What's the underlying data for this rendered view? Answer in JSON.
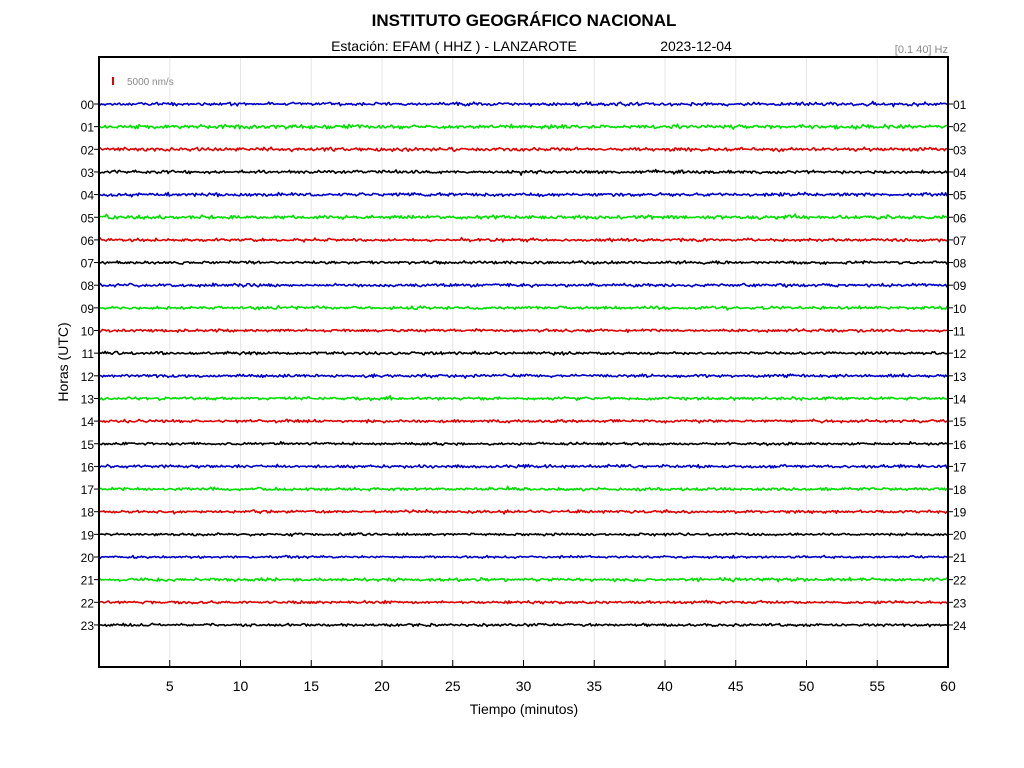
{
  "chart_data": {
    "type": "line",
    "title": "INSTITUTO GEOGRÁFICO NACIONAL",
    "subtitle": {
      "station": "Estación:  EFAM ( HHZ ) - LANZAROTE",
      "date": "2023-12-04"
    },
    "filter": "[0.1 40] Hz",
    "scale_label": "5000 nm/s",
    "xlabel": "Tiempo (minutos)",
    "ylabel": "Horas (UTC)",
    "xlim": [
      0,
      60
    ],
    "x_ticks": [
      "5",
      "10",
      "15",
      "20",
      "25",
      "30",
      "35",
      "40",
      "45",
      "50",
      "55",
      "60"
    ],
    "x_tick_values": [
      5,
      10,
      15,
      20,
      25,
      30,
      35,
      40,
      45,
      50,
      55,
      60
    ],
    "left_labels": [
      "00",
      "01",
      "02",
      "03",
      "04",
      "05",
      "06",
      "07",
      "08",
      "09",
      "10",
      "11",
      "12",
      "13",
      "14",
      "15",
      "16",
      "17",
      "18",
      "19",
      "20",
      "21",
      "22",
      "23"
    ],
    "right_labels": [
      "01",
      "02",
      "03",
      "04",
      "05",
      "06",
      "07",
      "08",
      "09",
      "10",
      "11",
      "12",
      "13",
      "14",
      "15",
      "16",
      "17",
      "18",
      "19",
      "20",
      "21",
      "22",
      "23",
      "24"
    ],
    "trace_colors": [
      "#0000c8",
      "#00e000",
      "#e00000",
      "#000000"
    ],
    "scale_color": "#e00000",
    "grid": "vertical",
    "series": [
      {
        "hour": 0,
        "color": "#0000c8",
        "amplitude_nm_s": 1500
      },
      {
        "hour": 1,
        "color": "#00e000",
        "amplitude_nm_s": 1700
      },
      {
        "hour": 2,
        "color": "#e00000",
        "amplitude_nm_s": 1500
      },
      {
        "hour": 3,
        "color": "#000000",
        "amplitude_nm_s": 1400
      },
      {
        "hour": 4,
        "color": "#0000c8",
        "amplitude_nm_s": 1500
      },
      {
        "hour": 5,
        "color": "#00e000",
        "amplitude_nm_s": 1600
      },
      {
        "hour": 6,
        "color": "#e00000",
        "amplitude_nm_s": 1300
      },
      {
        "hour": 7,
        "color": "#000000",
        "amplitude_nm_s": 1200
      },
      {
        "hour": 8,
        "color": "#0000c8",
        "amplitude_nm_s": 1400
      },
      {
        "hour": 9,
        "color": "#00e000",
        "amplitude_nm_s": 1300
      },
      {
        "hour": 10,
        "color": "#e00000",
        "amplitude_nm_s": 1200
      },
      {
        "hour": 11,
        "color": "#000000",
        "amplitude_nm_s": 1200
      },
      {
        "hour": 12,
        "color": "#0000c8",
        "amplitude_nm_s": 1300
      },
      {
        "hour": 13,
        "color": "#00e000",
        "amplitude_nm_s": 1300
      },
      {
        "hour": 14,
        "color": "#e00000",
        "amplitude_nm_s": 1300
      },
      {
        "hour": 15,
        "color": "#000000",
        "amplitude_nm_s": 1100
      },
      {
        "hour": 16,
        "color": "#0000c8",
        "amplitude_nm_s": 1300
      },
      {
        "hour": 17,
        "color": "#00e000",
        "amplitude_nm_s": 1300
      },
      {
        "hour": 18,
        "color": "#e00000",
        "amplitude_nm_s": 1200
      },
      {
        "hour": 19,
        "color": "#000000",
        "amplitude_nm_s": 1100
      },
      {
        "hour": 20,
        "color": "#0000c8",
        "amplitude_nm_s": 1000
      },
      {
        "hour": 21,
        "color": "#00e000",
        "amplitude_nm_s": 1400
      },
      {
        "hour": 22,
        "color": "#e00000",
        "amplitude_nm_s": 1200
      },
      {
        "hour": 23,
        "color": "#000000",
        "amplitude_nm_s": 1200
      }
    ]
  }
}
